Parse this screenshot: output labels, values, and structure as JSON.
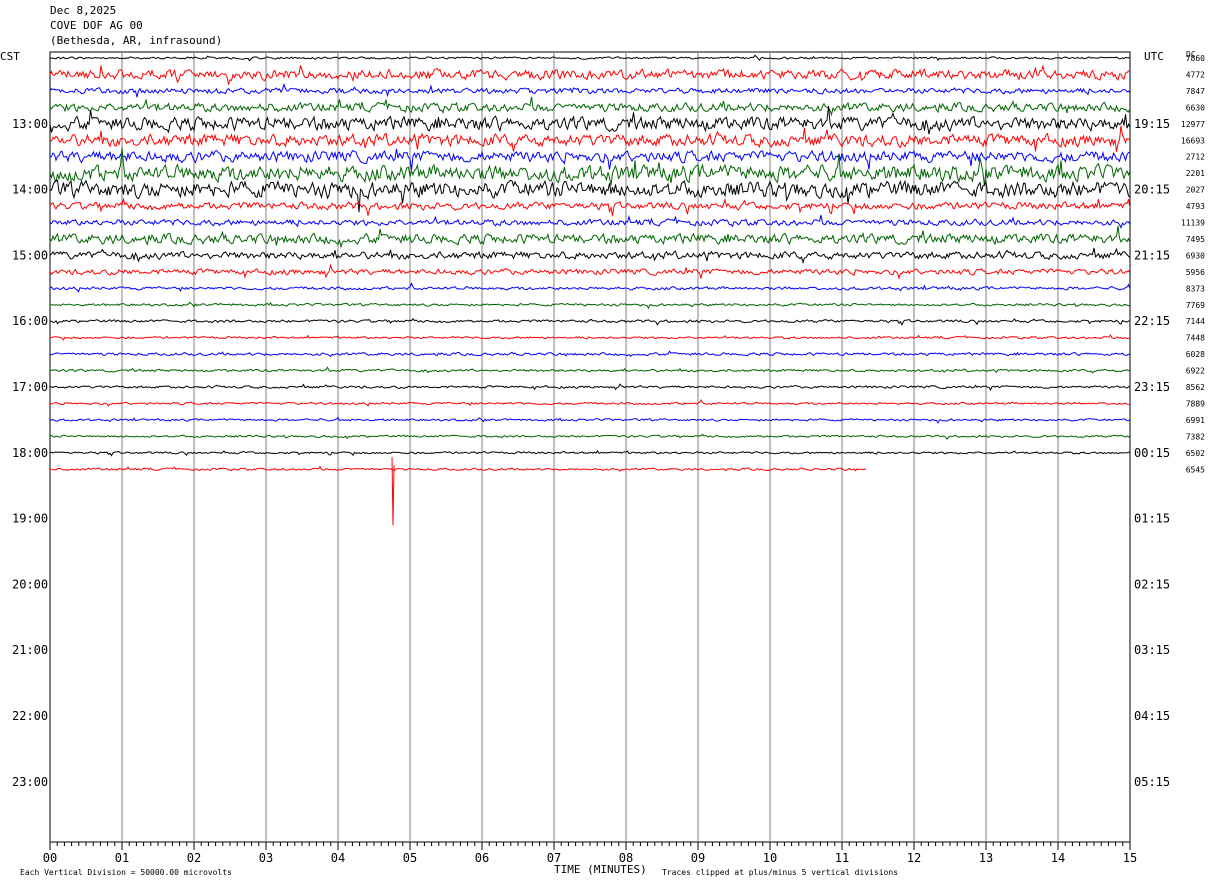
{
  "header": {
    "date": "Dec 8,2025",
    "station": "COVE DOF AG 00",
    "location": "(Bethesda, AR, infrasound)"
  },
  "left_tz": "CST",
  "right_tz": "UTC",
  "dc_label": "DC",
  "footer": {
    "scale_note": "Each Vertical Division = 50000.00 microvolts",
    "xlabel": "TIME (MINUTES)",
    "clip_note": "Traces clipped at plus/minus 5 vertical divisions"
  },
  "colors": {
    "trace_cycle": [
      "#000000",
      "#ff0000",
      "#0000ff",
      "#006400"
    ],
    "grid": "#808080"
  },
  "chart_data": {
    "type": "line",
    "subtype": "helicorder",
    "xlabel": "TIME (MINUTES)",
    "xlim": [
      0,
      15
    ],
    "x_ticks": [
      "00",
      "01",
      "02",
      "03",
      "04",
      "05",
      "06",
      "07",
      "08",
      "09",
      "10",
      "11",
      "12",
      "13",
      "14",
      "15"
    ],
    "left_time_labels": [
      "13:00",
      "14:00",
      "15:00",
      "16:00",
      "17:00",
      "18:00",
      "19:00",
      "20:00",
      "21:00",
      "22:00",
      "23:00"
    ],
    "right_time_labels": [
      "19:15",
      "20:15",
      "21:15",
      "22:15",
      "23:15",
      "00:15",
      "01:15",
      "02:15",
      "03:15",
      "04:15",
      "05:15"
    ],
    "trace_interval_minutes": 15,
    "grid": true,
    "traces": [
      {
        "dc": "7860",
        "amplitude": 0.35,
        "end_minute": 15
      },
      {
        "dc": "4772",
        "amplitude": 1.6,
        "end_minute": 15
      },
      {
        "dc": "7847",
        "amplitude": 0.9,
        "end_minute": 15
      },
      {
        "dc": "6630",
        "amplitude": 1.4,
        "end_minute": 15
      },
      {
        "dc": "12977",
        "amplitude": 2.2,
        "end_minute": 15
      },
      {
        "dc": "16693",
        "amplitude": 2.0,
        "end_minute": 15
      },
      {
        "dc": "2712",
        "amplitude": 1.8,
        "end_minute": 15
      },
      {
        "dc": "2201",
        "amplitude": 2.6,
        "end_minute": 15
      },
      {
        "dc": "2027",
        "amplitude": 2.6,
        "end_minute": 15
      },
      {
        "dc": "4793",
        "amplitude": 1.2,
        "end_minute": 15
      },
      {
        "dc": "11139",
        "amplitude": 1.0,
        "end_minute": 15
      },
      {
        "dc": "7495",
        "amplitude": 1.6,
        "end_minute": 15
      },
      {
        "dc": "6930",
        "amplitude": 1.2,
        "end_minute": 15
      },
      {
        "dc": "5956",
        "amplitude": 0.9,
        "end_minute": 15
      },
      {
        "dc": "8373",
        "amplitude": 0.5,
        "end_minute": 15
      },
      {
        "dc": "7769",
        "amplitude": 0.4,
        "end_minute": 15
      },
      {
        "dc": "7144",
        "amplitude": 0.45,
        "end_minute": 15
      },
      {
        "dc": "7448",
        "amplitude": 0.35,
        "end_minute": 15
      },
      {
        "dc": "6028",
        "amplitude": 0.45,
        "end_minute": 15
      },
      {
        "dc": "6922",
        "amplitude": 0.4,
        "end_minute": 15
      },
      {
        "dc": "8562",
        "amplitude": 0.4,
        "end_minute": 15
      },
      {
        "dc": "7889",
        "amplitude": 0.35,
        "end_minute": 15
      },
      {
        "dc": "6991",
        "amplitude": 0.35,
        "end_minute": 15
      },
      {
        "dc": "7382",
        "amplitude": 0.35,
        "end_minute": 15
      },
      {
        "dc": "6502",
        "amplitude": 0.35,
        "end_minute": 15
      },
      {
        "dc": "6545",
        "amplitude": 0.35,
        "end_minute": 11.35
      }
    ]
  }
}
